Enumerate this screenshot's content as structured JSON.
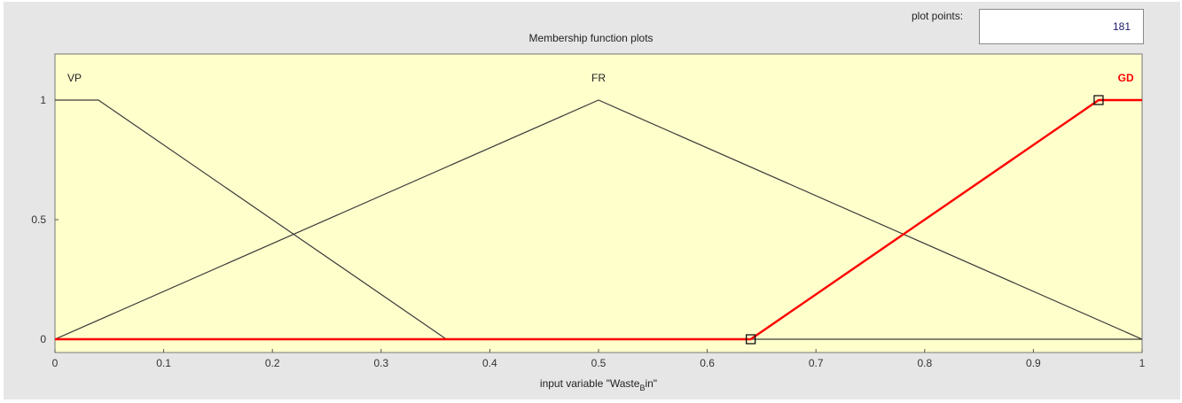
{
  "plot_points": {
    "label": "plot points:",
    "value": "181"
  },
  "chart_data": {
    "type": "line",
    "title": "Membership function plots",
    "xlabel_parts": {
      "pre": "input variable \"Waste",
      "sub": "B",
      "post": "in\""
    },
    "xlim": [
      0,
      1
    ],
    "ylim": [
      0,
      1
    ],
    "x_ticks": [
      "0",
      "0.1",
      "0.2",
      "0.3",
      "0.4",
      "0.5",
      "0.6",
      "0.7",
      "0.8",
      "0.9",
      "1"
    ],
    "y_ticks": [
      "0",
      "0.5",
      "1"
    ],
    "grid": false,
    "background": "#ffffcc",
    "selected_color": "#ff0000",
    "default_color": "#3a3a3a",
    "series": [
      {
        "name": "VP",
        "selected": false,
        "label_x": 0.018,
        "points": [
          [
            0,
            1
          ],
          [
            0.04,
            1
          ],
          [
            0.36,
            0
          ],
          [
            1,
            0
          ]
        ]
      },
      {
        "name": "FR",
        "selected": false,
        "label_x": 0.5,
        "points": [
          [
            0,
            0
          ],
          [
            0.5,
            1
          ],
          [
            1,
            0
          ]
        ]
      },
      {
        "name": "GD",
        "selected": true,
        "label_x": 0.985,
        "points": [
          [
            0,
            0
          ],
          [
            0.64,
            0
          ],
          [
            0.96,
            1
          ],
          [
            1,
            1
          ]
        ],
        "handles": [
          [
            0.64,
            0
          ],
          [
            0.96,
            1
          ]
        ]
      }
    ]
  }
}
